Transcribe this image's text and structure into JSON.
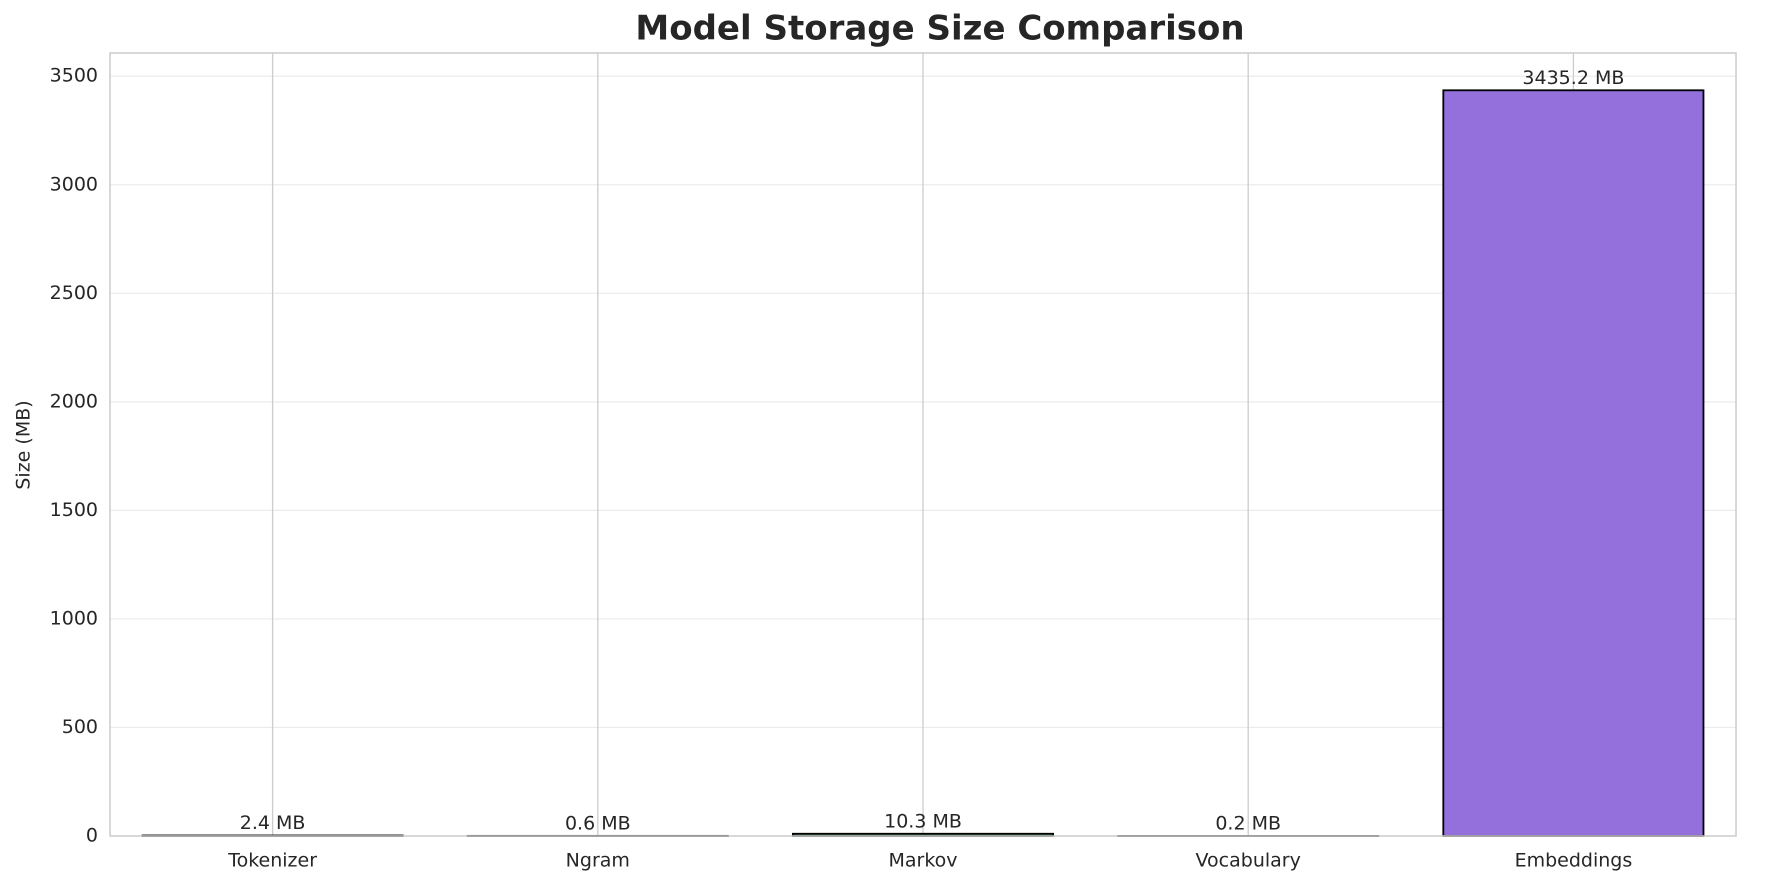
{
  "chart_data": {
    "type": "bar",
    "title": "Model Storage Size Comparison",
    "y_label": "Size (MB)",
    "categories": [
      "Tokenizer",
      "Ngram",
      "Markov",
      "Vocabulary",
      "Embeddings"
    ],
    "values": [
      2.4,
      0.6,
      10.3,
      0.2,
      3435.2
    ],
    "value_labels": [
      "2.4 MB",
      "0.6 MB",
      "10.3 MB",
      "0.2 MB",
      "3435.2 MB"
    ],
    "colors": [
      "#4c72b0",
      "#dd8452",
      "#55a868",
      "#c44e52",
      "#9370db"
    ],
    "ylim": [
      0,
      3607
    ],
    "yticks": [
      0,
      500,
      1000,
      1500,
      2000,
      2500,
      3000,
      3500
    ],
    "grid": true
  }
}
